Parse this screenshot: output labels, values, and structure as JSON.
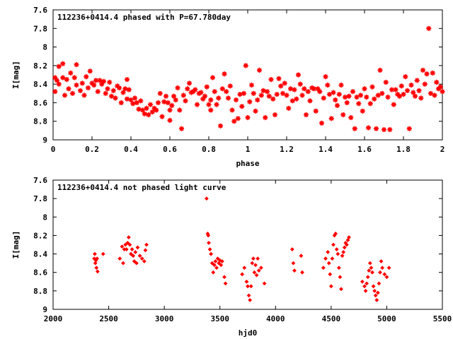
{
  "chart_data": [
    {
      "type": "scatter",
      "title": "112236+0414.4 phased with P=67.780day",
      "xlabel": "phase",
      "ylabel": "I[mag]",
      "xlim": [
        0,
        2
      ],
      "ylim": [
        7.6,
        9
      ],
      "y_inverted": true,
      "grid": false,
      "marker": "star",
      "color": "#ff0000",
      "x_ticks": [
        "0",
        "0.2",
        "0.4",
        "0.6",
        "0.8",
        "1",
        "1.2",
        "1.4",
        "1.6",
        "1.8",
        "2"
      ],
      "y_ticks": [
        "7.6",
        "7.8",
        "8",
        "8.2",
        "8.4",
        "8.6",
        "8.8",
        "9"
      ],
      "points": [
        [
          0.01,
          8.33
        ],
        [
          0.01,
          8.48
        ],
        [
          0.02,
          8.36
        ],
        [
          0.03,
          8.4
        ],
        [
          0.03,
          8.21
        ],
        [
          0.05,
          8.33
        ],
        [
          0.05,
          8.18
        ],
        [
          0.06,
          8.52
        ],
        [
          0.07,
          8.35
        ],
        [
          0.08,
          8.45
        ],
        [
          0.09,
          8.28
        ],
        [
          0.1,
          8.5
        ],
        [
          0.11,
          8.33
        ],
        [
          0.12,
          8.41
        ],
        [
          0.12,
          8.19
        ],
        [
          0.14,
          8.47
        ],
        [
          0.15,
          8.39
        ],
        [
          0.16,
          8.52
        ],
        [
          0.17,
          8.32
        ],
        [
          0.18,
          8.44
        ],
        [
          0.19,
          8.26
        ],
        [
          0.2,
          8.39
        ],
        [
          0.21,
          8.41
        ],
        [
          0.22,
          8.36
        ],
        [
          0.23,
          8.48
        ],
        [
          0.24,
          8.36
        ],
        [
          0.25,
          8.4
        ],
        [
          0.26,
          8.37
        ],
        [
          0.27,
          8.5
        ],
        [
          0.28,
          8.45
        ],
        [
          0.29,
          8.38
        ],
        [
          0.3,
          8.53
        ],
        [
          0.31,
          8.47
        ],
        [
          0.32,
          8.55
        ],
        [
          0.33,
          8.42
        ],
        [
          0.34,
          8.44
        ],
        [
          0.35,
          8.6
        ],
        [
          0.36,
          8.49
        ],
        [
          0.37,
          8.45
        ],
        [
          0.38,
          8.56
        ],
        [
          0.38,
          8.35
        ],
        [
          0.39,
          8.46
        ],
        [
          0.4,
          8.57
        ],
        [
          0.41,
          8.61
        ],
        [
          0.42,
          8.55
        ],
        [
          0.43,
          8.6
        ],
        [
          0.44,
          8.67
        ],
        [
          0.45,
          8.58
        ],
        [
          0.46,
          8.68
        ],
        [
          0.47,
          8.72
        ],
        [
          0.48,
          8.66
        ],
        [
          0.49,
          8.73
        ],
        [
          0.5,
          8.62
        ],
        [
          0.51,
          8.7
        ],
        [
          0.52,
          8.66
        ],
        [
          0.53,
          8.68
        ],
        [
          0.54,
          8.6
        ],
        [
          0.55,
          8.5
        ],
        [
          0.56,
          8.75
        ],
        [
          0.57,
          8.59
        ],
        [
          0.58,
          8.53
        ],
        [
          0.59,
          8.6
        ],
        [
          0.6,
          8.68
        ],
        [
          0.6,
          8.79
        ],
        [
          0.61,
          8.63
        ],
        [
          0.62,
          8.53
        ],
        [
          0.63,
          8.57
        ],
        [
          0.64,
          8.44
        ],
        [
          0.65,
          8.68
        ],
        [
          0.66,
          8.88
        ],
        [
          0.67,
          8.52
        ],
        [
          0.68,
          8.58
        ],
        [
          0.69,
          8.45
        ],
        [
          0.7,
          8.39
        ],
        [
          0.71,
          8.49
        ],
        [
          0.72,
          8.48
        ],
        [
          0.73,
          8.46
        ],
        [
          0.74,
          8.62
        ],
        [
          0.75,
          8.5
        ],
        [
          0.76,
          8.49
        ],
        [
          0.77,
          8.56
        ],
        [
          0.78,
          8.53
        ],
        [
          0.79,
          8.43
        ],
        [
          0.8,
          8.62
        ],
        [
          0.81,
          8.57
        ],
        [
          0.81,
          8.68
        ],
        [
          0.82,
          8.33
        ],
        [
          0.83,
          8.48
        ],
        [
          0.84,
          8.62
        ],
        [
          0.85,
          8.55
        ],
        [
          0.86,
          8.85
        ],
        [
          0.87,
          8.45
        ],
        [
          0.88,
          8.29
        ],
        [
          0.89,
          8.48
        ],
        [
          0.9,
          8.55
        ],
        [
          0.91,
          8.42
        ],
        [
          0.92,
          8.68
        ],
        [
          0.93,
          8.8
        ],
        [
          0.94,
          8.57
        ],
        [
          0.95,
          8.77
        ],
        [
          0.96,
          8.51
        ],
        [
          0.97,
          8.64
        ],
        [
          0.98,
          8.5
        ],
        [
          0.99,
          8.2
        ],
        [
          1.0,
          8.76
        ],
        [
          1.01,
          8.59
        ],
        [
          1.02,
          8.41
        ],
        [
          1.03,
          8.5
        ],
        [
          1.04,
          8.69
        ],
        [
          1.05,
          8.57
        ],
        [
          1.06,
          8.25
        ],
        [
          1.07,
          8.52
        ],
        [
          1.08,
          8.47
        ],
        [
          1.09,
          8.76
        ],
        [
          1.1,
          8.48
        ],
        [
          1.11,
          8.53
        ],
        [
          1.12,
          8.35
        ],
        [
          1.13,
          8.56
        ],
        [
          1.14,
          8.73
        ],
        [
          1.15,
          8.51
        ],
        [
          1.16,
          8.34
        ],
        [
          1.17,
          8.42
        ],
        [
          1.18,
          8.5
        ],
        [
          1.19,
          8.39
        ],
        [
          1.2,
          8.52
        ],
        [
          1.21,
          8.66
        ],
        [
          1.22,
          8.45
        ],
        [
          1.23,
          8.58
        ],
        [
          1.24,
          8.46
        ],
        [
          1.25,
          8.56
        ],
        [
          1.26,
          8.3
        ],
        [
          1.27,
          8.4
        ],
        [
          1.28,
          8.52
        ],
        [
          1.29,
          8.45
        ],
        [
          1.3,
          8.73
        ],
        [
          1.31,
          8.48
        ],
        [
          1.32,
          8.58
        ],
        [
          1.33,
          8.44
        ],
        [
          1.34,
          8.45
        ],
        [
          1.35,
          8.69
        ],
        [
          1.36,
          8.45
        ],
        [
          1.37,
          8.48
        ],
        [
          1.38,
          8.82
        ],
        [
          1.39,
          8.55
        ],
        [
          1.4,
          8.32
        ],
        [
          1.41,
          8.41
        ],
        [
          1.42,
          8.51
        ],
        [
          1.43,
          8.77
        ],
        [
          1.44,
          8.49
        ],
        [
          1.45,
          8.57
        ],
        [
          1.46,
          8.63
        ],
        [
          1.47,
          8.51
        ],
        [
          1.48,
          8.41
        ],
        [
          1.49,
          8.73
        ],
        [
          1.5,
          8.54
        ],
        [
          1.51,
          8.6
        ],
        [
          1.52,
          8.53
        ],
        [
          1.53,
          8.76
        ],
        [
          1.54,
          8.48
        ],
        [
          1.55,
          8.88
        ],
        [
          1.56,
          8.54
        ],
        [
          1.57,
          8.61
        ],
        [
          1.58,
          8.52
        ],
        [
          1.59,
          8.69
        ],
        [
          1.6,
          8.45
        ],
        [
          1.61,
          8.54
        ],
        [
          1.62,
          8.87
        ],
        [
          1.63,
          8.61
        ],
        [
          1.64,
          8.43
        ],
        [
          1.65,
          8.56
        ],
        [
          1.66,
          8.88
        ],
        [
          1.67,
          8.52
        ],
        [
          1.68,
          8.25
        ],
        [
          1.69,
          8.5
        ],
        [
          1.7,
          8.89
        ],
        [
          1.71,
          8.38
        ],
        [
          1.72,
          8.54
        ],
        [
          1.73,
          8.89
        ],
        [
          1.74,
          8.46
        ],
        [
          1.75,
          8.62
        ],
        [
          1.76,
          8.46
        ],
        [
          1.77,
          8.51
        ],
        [
          1.78,
          8.53
        ],
        [
          1.79,
          8.42
        ],
        [
          1.8,
          8.51
        ],
        [
          1.81,
          8.32
        ],
        [
          1.82,
          8.47
        ],
        [
          1.83,
          8.88
        ],
        [
          1.84,
          8.41
        ],
        [
          1.85,
          8.49
        ],
        [
          1.86,
          8.53
        ],
        [
          1.87,
          8.36
        ],
        [
          1.88,
          8.47
        ],
        [
          1.89,
          8.55
        ],
        [
          1.9,
          8.25
        ],
        [
          1.91,
          8.4
        ],
        [
          1.92,
          8.29
        ],
        [
          1.93,
          7.8
        ],
        [
          1.94,
          8.5
        ],
        [
          1.95,
          8.28
        ],
        [
          1.96,
          8.52
        ],
        [
          1.97,
          8.38
        ],
        [
          1.98,
          8.45
        ],
        [
          1.99,
          8.43
        ],
        [
          2.0,
          8.48
        ]
      ]
    },
    {
      "type": "scatter",
      "title": "112236+0414.4 not phased light curve",
      "xlabel": "hjd0",
      "ylabel": "I[mag]",
      "xlim": [
        2000,
        5500
      ],
      "ylim": [
        7.6,
        9
      ],
      "y_inverted": true,
      "grid": false,
      "marker": "diamond",
      "color": "#ff0000",
      "x_ticks": [
        "2000",
        "2500",
        "3000",
        "3500",
        "4000",
        "4500",
        "5000",
        "5500"
      ],
      "y_ticks": [
        "7.6",
        "7.8",
        "8",
        "8.2",
        "8.4",
        "8.6",
        "8.8",
        "9"
      ],
      "points": [
        [
          2370,
          8.45
        ],
        [
          2375,
          8.4
        ],
        [
          2380,
          8.5
        ],
        [
          2385,
          8.47
        ],
        [
          2390,
          8.55
        ],
        [
          2395,
          8.45
        ],
        [
          2400,
          8.59
        ],
        [
          2450,
          8.4
        ],
        [
          2600,
          8.45
        ],
        [
          2620,
          8.32
        ],
        [
          2630,
          8.5
        ],
        [
          2640,
          8.35
        ],
        [
          2650,
          8.3
        ],
        [
          2660,
          8.35
        ],
        [
          2670,
          8.28
        ],
        [
          2680,
          8.22
        ],
        [
          2690,
          8.3
        ],
        [
          2700,
          8.4
        ],
        [
          2710,
          8.35
        ],
        [
          2720,
          8.42
        ],
        [
          2730,
          8.48
        ],
        [
          2740,
          8.38
        ],
        [
          2750,
          8.5
        ],
        [
          2760,
          8.33
        ],
        [
          2780,
          8.42
        ],
        [
          2800,
          8.45
        ],
        [
          2820,
          8.48
        ],
        [
          2830,
          8.36
        ],
        [
          2840,
          8.3
        ],
        [
          3380,
          7.8
        ],
        [
          3390,
          8.18
        ],
        [
          3395,
          8.2
        ],
        [
          3400,
          8.28
        ],
        [
          3410,
          8.35
        ],
        [
          3420,
          8.4
        ],
        [
          3430,
          8.5
        ],
        [
          3440,
          8.6
        ],
        [
          3450,
          8.52
        ],
        [
          3460,
          8.48
        ],
        [
          3470,
          8.55
        ],
        [
          3480,
          8.45
        ],
        [
          3490,
          8.5
        ],
        [
          3500,
          8.47
        ],
        [
          3510,
          8.52
        ],
        [
          3520,
          8.48
        ],
        [
          3540,
          8.65
        ],
        [
          3550,
          8.72
        ],
        [
          3700,
          8.62
        ],
        [
          3720,
          8.55
        ],
        [
          3740,
          8.7
        ],
        [
          3750,
          8.75
        ],
        [
          3760,
          8.85
        ],
        [
          3770,
          8.9
        ],
        [
          3780,
          8.75
        ],
        [
          3790,
          8.5
        ],
        [
          3800,
          8.45
        ],
        [
          3810,
          8.6
        ],
        [
          3820,
          8.52
        ],
        [
          3830,
          8.63
        ],
        [
          3840,
          8.45
        ],
        [
          3850,
          8.58
        ],
        [
          3870,
          8.55
        ],
        [
          3900,
          8.72
        ],
        [
          4150,
          8.35
        ],
        [
          4160,
          8.5
        ],
        [
          4170,
          8.58
        ],
        [
          4230,
          8.42
        ],
        [
          4240,
          8.6
        ],
        [
          4430,
          8.55
        ],
        [
          4450,
          8.45
        ],
        [
          4470,
          8.38
        ],
        [
          4480,
          8.5
        ],
        [
          4490,
          8.62
        ],
        [
          4500,
          8.75
        ],
        [
          4510,
          8.45
        ],
        [
          4520,
          8.3
        ],
        [
          4530,
          8.2
        ],
        [
          4540,
          8.18
        ],
        [
          4550,
          8.35
        ],
        [
          4560,
          8.4
        ],
        [
          4570,
          8.55
        ],
        [
          4580,
          8.65
        ],
        [
          4590,
          8.78
        ],
        [
          4600,
          8.42
        ],
        [
          4610,
          8.38
        ],
        [
          4620,
          8.33
        ],
        [
          4630,
          8.28
        ],
        [
          4640,
          8.3
        ],
        [
          4650,
          8.25
        ],
        [
          4660,
          8.22
        ],
        [
          4780,
          8.7
        ],
        [
          4800,
          8.75
        ],
        [
          4810,
          8.8
        ],
        [
          4820,
          8.72
        ],
        [
          4830,
          8.65
        ],
        [
          4840,
          8.58
        ],
        [
          4850,
          8.5
        ],
        [
          4860,
          8.55
        ],
        [
          4870,
          8.6
        ],
        [
          4880,
          8.75
        ],
        [
          4890,
          8.8
        ],
        [
          4900,
          8.85
        ],
        [
          4910,
          8.9
        ],
        [
          4920,
          8.82
        ],
        [
          4930,
          8.72
        ],
        [
          4940,
          8.6
        ],
        [
          4950,
          8.48
        ],
        [
          4960,
          8.55
        ],
        [
          4980,
          8.62
        ],
        [
          5000,
          8.65
        ],
        [
          5020,
          8.55
        ]
      ]
    }
  ]
}
